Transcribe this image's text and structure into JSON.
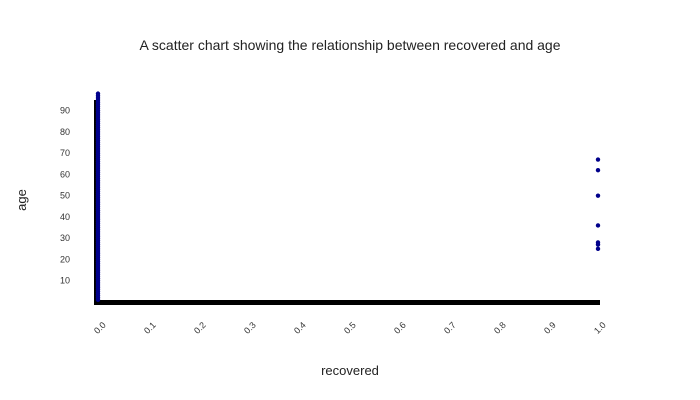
{
  "chart_data": {
    "type": "scatter",
    "title": "A scatter chart showing the relationship between recovered and age",
    "xlabel": "recovered",
    "ylabel": "age",
    "xlim": [
      0,
      1
    ],
    "ylim": [
      0,
      95
    ],
    "x_ticks": [
      "0.0",
      "0.1",
      "0.2",
      "0.3",
      "0.4",
      "0.5",
      "0.6",
      "0.7",
      "0.8",
      "0.9",
      "1.0"
    ],
    "y_ticks": [
      "10",
      "20",
      "30",
      "40",
      "50",
      "60",
      "70",
      "80",
      "90"
    ],
    "grid": false,
    "legend": "none",
    "point_color": "#00008b",
    "axis_color": "#000000",
    "series": [
      {
        "x": [
          0,
          0,
          0,
          0,
          0,
          0,
          0,
          0,
          0,
          0,
          0,
          0,
          0,
          0,
          0,
          0,
          0,
          0,
          0,
          0,
          0,
          0,
          0,
          0,
          0,
          0,
          0,
          0,
          0,
          0,
          0,
          0,
          0,
          0,
          0,
          0,
          0,
          0,
          0,
          0,
          0,
          0,
          0,
          0,
          0,
          0,
          0,
          0,
          0,
          0,
          0,
          0,
          0,
          0,
          0,
          0,
          0,
          0,
          0,
          0,
          0,
          0,
          0,
          0,
          0,
          0,
          0,
          0,
          0,
          0,
          0,
          0,
          0,
          0,
          0,
          0,
          0,
          0,
          0,
          0,
          0,
          0,
          0,
          0,
          0,
          0,
          0,
          0,
          0,
          0,
          0,
          0,
          0,
          0,
          0,
          0,
          0,
          0,
          1,
          1,
          1,
          1,
          1,
          1,
          1
        ],
        "y": [
          1,
          2,
          3,
          4,
          5,
          6,
          7,
          8,
          9,
          10,
          11,
          12,
          13,
          14,
          15,
          16,
          17,
          18,
          19,
          20,
          21,
          22,
          23,
          24,
          25,
          26,
          27,
          28,
          29,
          30,
          31,
          32,
          33,
          34,
          35,
          36,
          37,
          38,
          39,
          40,
          41,
          42,
          43,
          44,
          45,
          46,
          47,
          48,
          49,
          50,
          51,
          52,
          53,
          54,
          55,
          56,
          57,
          58,
          59,
          60,
          61,
          62,
          63,
          64,
          65,
          66,
          67,
          68,
          69,
          70,
          71,
          72,
          73,
          74,
          75,
          76,
          77,
          78,
          79,
          80,
          81,
          82,
          83,
          84,
          85,
          86,
          87,
          88,
          89,
          90,
          91,
          92,
          93,
          94,
          95,
          96,
          97,
          98,
          25,
          27,
          36,
          50,
          62,
          67,
          28
        ]
      }
    ]
  }
}
